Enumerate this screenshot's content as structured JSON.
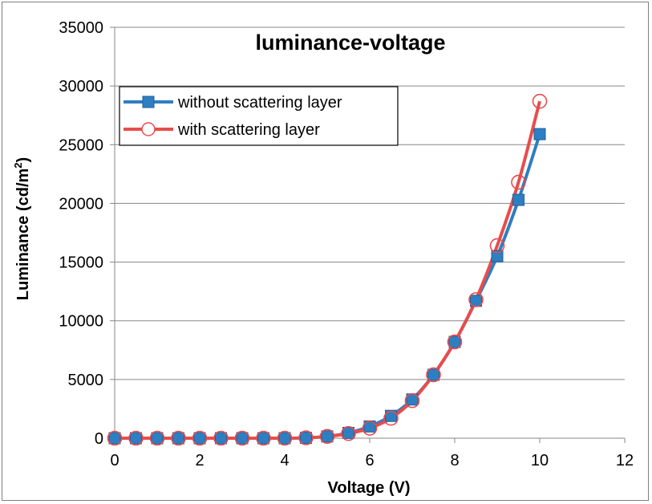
{
  "chart_data": {
    "type": "line",
    "title": "luminance-voltage",
    "xlabel": "Voltage (V)",
    "ylabel_main": "Luminance (cd/m",
    "ylabel_sup": "2",
    "ylabel_close": ")",
    "xlim": [
      0,
      12
    ],
    "ylim": [
      0,
      35000
    ],
    "xticks": [
      "0",
      "2",
      "4",
      "6",
      "8",
      "10",
      "12"
    ],
    "yticks": [
      "0",
      "5000",
      "10000",
      "15000",
      "20000",
      "25000",
      "30000",
      "35000"
    ],
    "grid": "horizontal",
    "legend_position": "top-left",
    "x": [
      0,
      0.5,
      1,
      1.5,
      2,
      2.5,
      3,
      3.5,
      4,
      4.5,
      5,
      5.5,
      6,
      6.5,
      7,
      7.5,
      8,
      8.5,
      9,
      9.5,
      10
    ],
    "series": [
      {
        "name": "without scattering layer",
        "color": "#2e7ec2",
        "marker": "square",
        "values": [
          0,
          0,
          0,
          0,
          0,
          0,
          0,
          0,
          0,
          30,
          150,
          450,
          1000,
          1900,
          3300,
          5400,
          8200,
          11700,
          15500,
          20300,
          25900
        ]
      },
      {
        "name": "with scattering layer",
        "color": "#e84c4c",
        "marker": "circle",
        "values": [
          0,
          0,
          0,
          0,
          0,
          0,
          0,
          0,
          0,
          30,
          150,
          400,
          850,
          1700,
          3200,
          5400,
          8200,
          11800,
          16400,
          21800,
          28700
        ]
      }
    ]
  }
}
